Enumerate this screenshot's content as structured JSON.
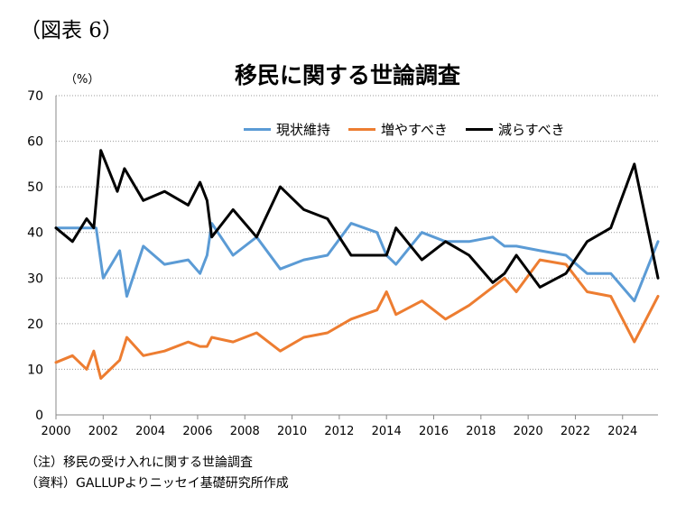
{
  "figure_label": "（図表 6）",
  "notes": {
    "note": "（注）移民の受け入れに関する世論調査",
    "source": "（資料）GALLUPよりニッセイ基礎研究所作成"
  },
  "chart_data": {
    "type": "line",
    "title": "移民に関する世論調査",
    "ylabel": "（%）",
    "xlabel": "",
    "xlim": [
      2000,
      2025.5
    ],
    "ylim": [
      0,
      70
    ],
    "xticks": [
      "2000",
      "2002",
      "2004",
      "2006",
      "2008",
      "2010",
      "2012",
      "2014",
      "2016",
      "2018",
      "2020",
      "2022",
      "2024"
    ],
    "yticks": [
      "0",
      "10",
      "20",
      "30",
      "40",
      "50",
      "60",
      "70"
    ],
    "grid": true,
    "legend_position": "top",
    "series": [
      {
        "name": "現状維持",
        "color": "#5b9bd5",
        "points": [
          [
            2000,
            41
          ],
          [
            2001,
            41
          ],
          [
            2001.3,
            41
          ],
          [
            2001.7,
            41
          ],
          [
            2002,
            30
          ],
          [
            2002.7,
            36
          ],
          [
            2003,
            26
          ],
          [
            2003.7,
            37
          ],
          [
            2004.6,
            33
          ],
          [
            2005.6,
            34
          ],
          [
            2006.1,
            31
          ],
          [
            2006.4,
            35
          ],
          [
            2006.6,
            42
          ],
          [
            2007.5,
            35
          ],
          [
            2008.5,
            39
          ],
          [
            2009.5,
            32
          ],
          [
            2010.5,
            34
          ],
          [
            2011.5,
            35
          ],
          [
            2012.5,
            42
          ],
          [
            2013.6,
            40
          ],
          [
            2014,
            35
          ],
          [
            2014.4,
            33
          ],
          [
            2015.5,
            40
          ],
          [
            2016.5,
            38
          ],
          [
            2017.5,
            38
          ],
          [
            2018.5,
            39
          ],
          [
            2019,
            37
          ],
          [
            2019.5,
            37
          ],
          [
            2020.5,
            36
          ],
          [
            2021.6,
            35
          ],
          [
            2022.5,
            31
          ],
          [
            2023.5,
            31
          ],
          [
            2024.5,
            25
          ],
          [
            2025.5,
            38
          ]
        ]
      },
      {
        "name": "増やすべき",
        "color": "#ed7d31",
        "points": [
          [
            2000,
            11.5
          ],
          [
            2000.7,
            13
          ],
          [
            2001.3,
            10
          ],
          [
            2001.6,
            14
          ],
          [
            2001.9,
            8
          ],
          [
            2002.7,
            12
          ],
          [
            2003,
            17
          ],
          [
            2003.7,
            13
          ],
          [
            2004.6,
            14
          ],
          [
            2005.6,
            16
          ],
          [
            2006.1,
            15
          ],
          [
            2006.4,
            15
          ],
          [
            2006.6,
            17
          ],
          [
            2007.5,
            16
          ],
          [
            2008.5,
            18
          ],
          [
            2009.5,
            14
          ],
          [
            2010.5,
            17
          ],
          [
            2011.5,
            18
          ],
          [
            2012.5,
            21
          ],
          [
            2013.6,
            23
          ],
          [
            2014,
            27
          ],
          [
            2014.4,
            22
          ],
          [
            2015.5,
            25
          ],
          [
            2016.5,
            21
          ],
          [
            2017.5,
            24
          ],
          [
            2018.5,
            28
          ],
          [
            2019,
            30
          ],
          [
            2019.5,
            27
          ],
          [
            2020.5,
            34
          ],
          [
            2021.6,
            33
          ],
          [
            2022.5,
            27
          ],
          [
            2023.5,
            26
          ],
          [
            2024.5,
            16
          ],
          [
            2025.5,
            26
          ]
        ]
      },
      {
        "name": "減らすべき",
        "color": "#000000",
        "points": [
          [
            2000,
            41
          ],
          [
            2000.7,
            38
          ],
          [
            2001.3,
            43
          ],
          [
            2001.6,
            41
          ],
          [
            2001.9,
            58
          ],
          [
            2002.6,
            49
          ],
          [
            2002.9,
            54
          ],
          [
            2003.7,
            47
          ],
          [
            2004.6,
            49
          ],
          [
            2005.6,
            46
          ],
          [
            2006.1,
            51
          ],
          [
            2006.4,
            47
          ],
          [
            2006.6,
            39
          ],
          [
            2007.5,
            45
          ],
          [
            2008.5,
            39
          ],
          [
            2009.5,
            50
          ],
          [
            2010.5,
            45
          ],
          [
            2011.5,
            43
          ],
          [
            2012.5,
            35
          ],
          [
            2013.6,
            35
          ],
          [
            2014,
            35
          ],
          [
            2014.4,
            41
          ],
          [
            2015.5,
            34
          ],
          [
            2016.5,
            38
          ],
          [
            2017.5,
            35
          ],
          [
            2018.5,
            29
          ],
          [
            2019,
            31
          ],
          [
            2019.5,
            35
          ],
          [
            2020.5,
            28
          ],
          [
            2021.6,
            31
          ],
          [
            2022.5,
            38
          ],
          [
            2023.5,
            41
          ],
          [
            2024.5,
            55
          ],
          [
            2025.5,
            30
          ]
        ]
      }
    ]
  }
}
